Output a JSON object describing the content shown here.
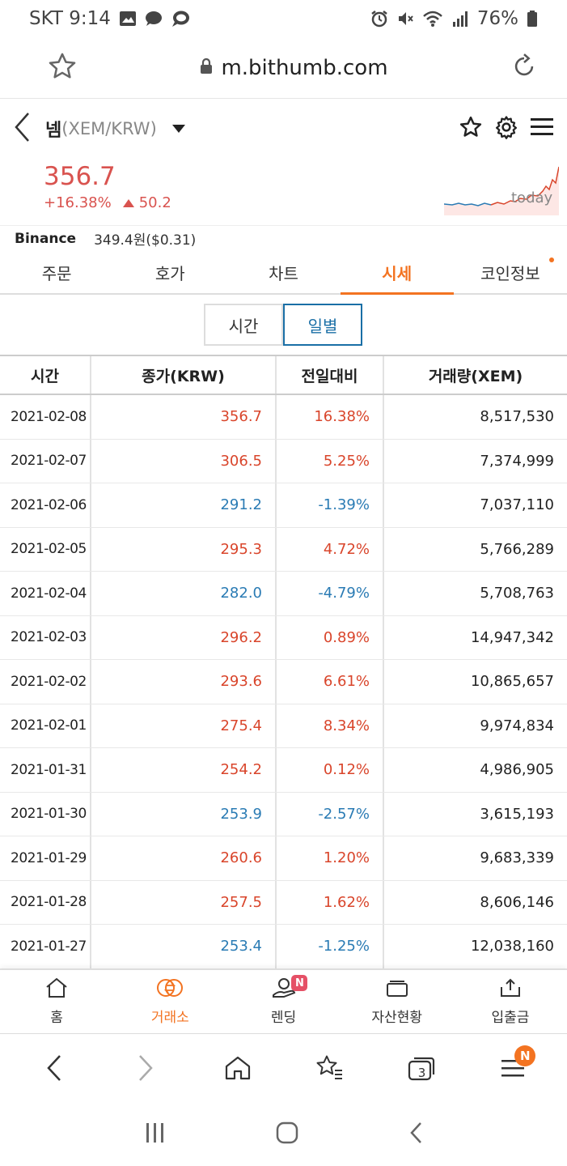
{
  "status": {
    "carrier_time": "SKT 9:14",
    "battery": "76%"
  },
  "browser": {
    "url": "m.bithumb.com"
  },
  "coin": {
    "name": "넴",
    "pair": "(XEM/KRW)"
  },
  "price": {
    "current": "356.7",
    "change_pct": "+16.38%",
    "change_abs": "50.2",
    "sparkline_label": "today"
  },
  "binance": {
    "label": "Binance",
    "value": "349.4원($0.31)"
  },
  "tabs": [
    "주문",
    "호가",
    "차트",
    "시세",
    "코인정보"
  ],
  "active_tab": "시세",
  "toggle": {
    "time": "시간",
    "daily": "일별"
  },
  "table": {
    "headers": [
      "시간",
      "종가(KRW)",
      "전일대비",
      "거래량(XEM)"
    ],
    "rows": [
      {
        "date": "2021-02-08",
        "close": "356.7",
        "change": "16.38%",
        "volume": "8,517,530",
        "dir": "up"
      },
      {
        "date": "2021-02-07",
        "close": "306.5",
        "change": "5.25%",
        "volume": "7,374,999",
        "dir": "up"
      },
      {
        "date": "2021-02-06",
        "close": "291.2",
        "change": "-1.39%",
        "volume": "7,037,110",
        "dir": "down"
      },
      {
        "date": "2021-02-05",
        "close": "295.3",
        "change": "4.72%",
        "volume": "5,766,289",
        "dir": "up"
      },
      {
        "date": "2021-02-04",
        "close": "282.0",
        "change": "-4.79%",
        "volume": "5,708,763",
        "dir": "down"
      },
      {
        "date": "2021-02-03",
        "close": "296.2",
        "change": "0.89%",
        "volume": "14,947,342",
        "dir": "up"
      },
      {
        "date": "2021-02-02",
        "close": "293.6",
        "change": "6.61%",
        "volume": "10,865,657",
        "dir": "up"
      },
      {
        "date": "2021-02-01",
        "close": "275.4",
        "change": "8.34%",
        "volume": "9,974,834",
        "dir": "up"
      },
      {
        "date": "2021-01-31",
        "close": "254.2",
        "change": "0.12%",
        "volume": "4,986,905",
        "dir": "up"
      },
      {
        "date": "2021-01-30",
        "close": "253.9",
        "change": "-2.57%",
        "volume": "3,615,193",
        "dir": "down"
      },
      {
        "date": "2021-01-29",
        "close": "260.6",
        "change": "1.20%",
        "volume": "9,683,339",
        "dir": "up"
      },
      {
        "date": "2021-01-28",
        "close": "257.5",
        "change": "1.62%",
        "volume": "8,606,146",
        "dir": "up"
      },
      {
        "date": "2021-01-27",
        "close": "253.4",
        "change": "-1.25%",
        "volume": "12,038,160",
        "dir": "down"
      }
    ]
  },
  "bottom_nav": [
    {
      "label": "홈",
      "icon": "home-icon"
    },
    {
      "label": "거래소",
      "icon": "exchange-icon"
    },
    {
      "label": "렌딩",
      "icon": "lending-icon",
      "badge": "N"
    },
    {
      "label": "자산현황",
      "icon": "wallet-icon"
    },
    {
      "label": "입출금",
      "icon": "deposit-icon"
    }
  ],
  "active_nav": "거래소",
  "browser_bar": {
    "tab_count": "3",
    "menu_badge": "N"
  },
  "colors": {
    "accent": "#f37321",
    "up": "#d9452b",
    "down": "#2a7bb4",
    "toggle_active": "#1a6fa6"
  }
}
